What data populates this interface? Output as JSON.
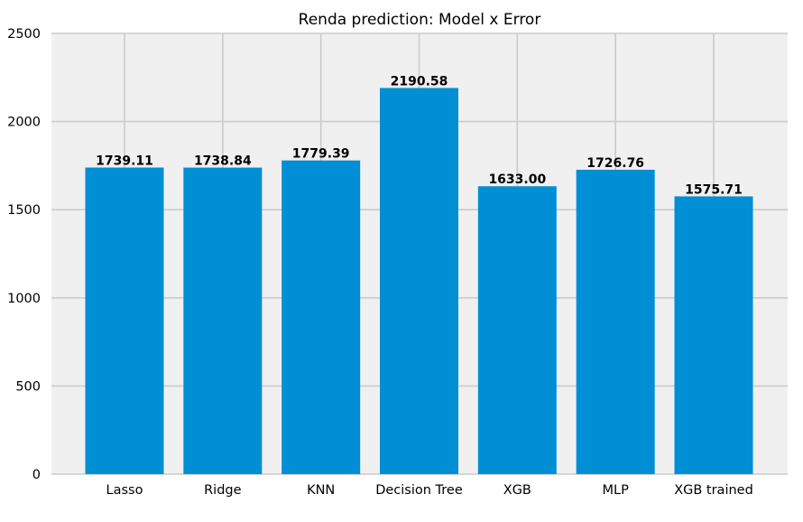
{
  "chart_data": {
    "type": "bar",
    "title": "Renda prediction: Model x Error",
    "xlabel": "",
    "ylabel": "",
    "categories": [
      "Lasso",
      "Ridge",
      "KNN",
      "Decision Tree",
      "XGB",
      "MLP",
      "XGB trained"
    ],
    "values": [
      1739.11,
      1738.84,
      1779.39,
      2190.58,
      1633.0,
      1726.76,
      1575.71
    ],
    "value_labels": [
      "1739.11",
      "1738.84",
      "1779.39",
      "2190.58",
      "1633.00",
      "1726.76",
      "1575.71"
    ],
    "ylim": [
      0,
      2500
    ],
    "yticks": [
      0,
      500,
      1000,
      1500,
      2000,
      2500
    ],
    "ytick_labels": [
      "0",
      "500",
      "1000",
      "1500",
      "2000",
      "2500"
    ],
    "grid": true,
    "colors": {
      "bar": "#008fd5",
      "plot_background": "#f0f0f0",
      "grid": "#cbcbcb",
      "text": "#000000"
    }
  }
}
